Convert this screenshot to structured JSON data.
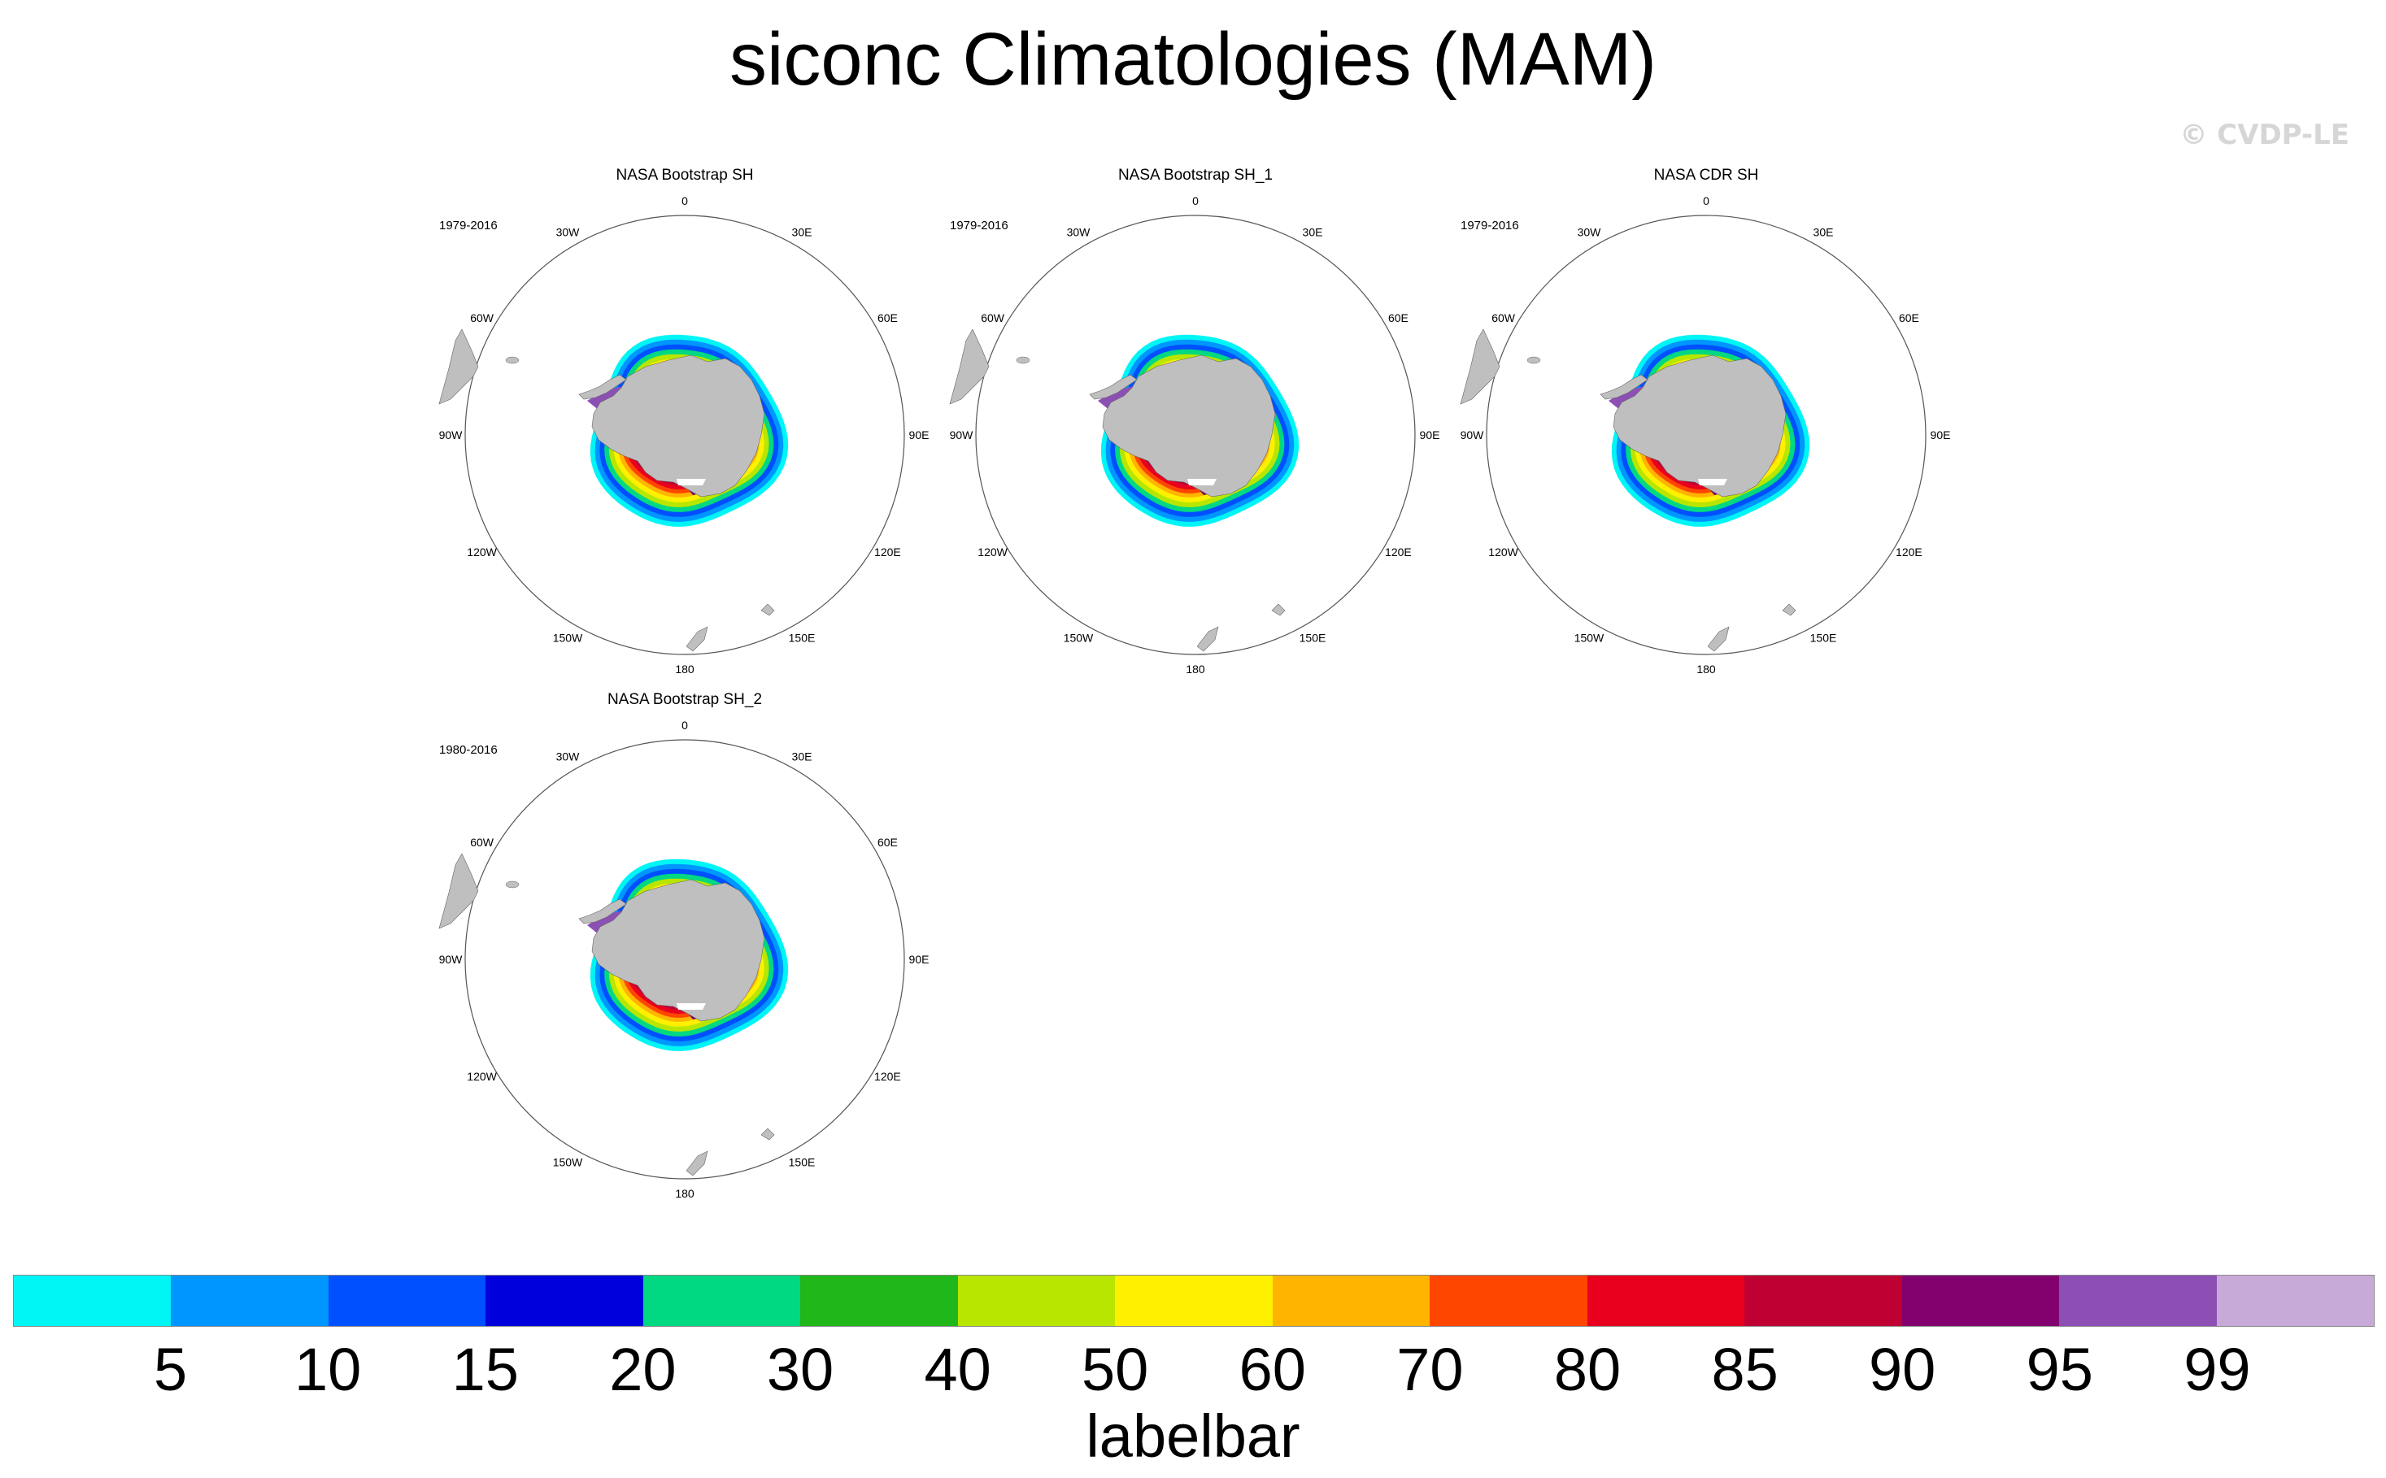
{
  "title": "siconc Climatologies (MAM)",
  "watermark": "© CVDP-LE",
  "longitude_labels": [
    "0",
    "30E",
    "60E",
    "90E",
    "120E",
    "150E",
    "180",
    "150W",
    "120W",
    "90W",
    "60W",
    "30W"
  ],
  "panels": [
    {
      "title": "NASA Bootstrap SH",
      "years": "1979-2016"
    },
    {
      "title": "NASA Bootstrap SH_1",
      "years": "1979-2016"
    },
    {
      "title": "NASA CDR SH",
      "years": "1979-2016"
    },
    {
      "title": "NASA Bootstrap SH_2",
      "years": "1980-2016"
    }
  ],
  "colors": {
    "land": "#bfbfbf",
    "boundary": "#555555",
    "levels": [
      "#00f5f5",
      "#0096ff",
      "#0050ff",
      "#0000dc",
      "#00d882",
      "#20b71a",
      "#b9e600",
      "#fff000",
      "#ffb400",
      "#ff4600",
      "#e8001e",
      "#be0032",
      "#82006e",
      "#8c50b4",
      "#c8aad8"
    ]
  },
  "labelbar": {
    "title": "labelbar",
    "ticks": [
      "5",
      "10",
      "15",
      "20",
      "30",
      "40",
      "50",
      "60",
      "70",
      "80",
      "85",
      "90",
      "95",
      "99"
    ]
  }
}
